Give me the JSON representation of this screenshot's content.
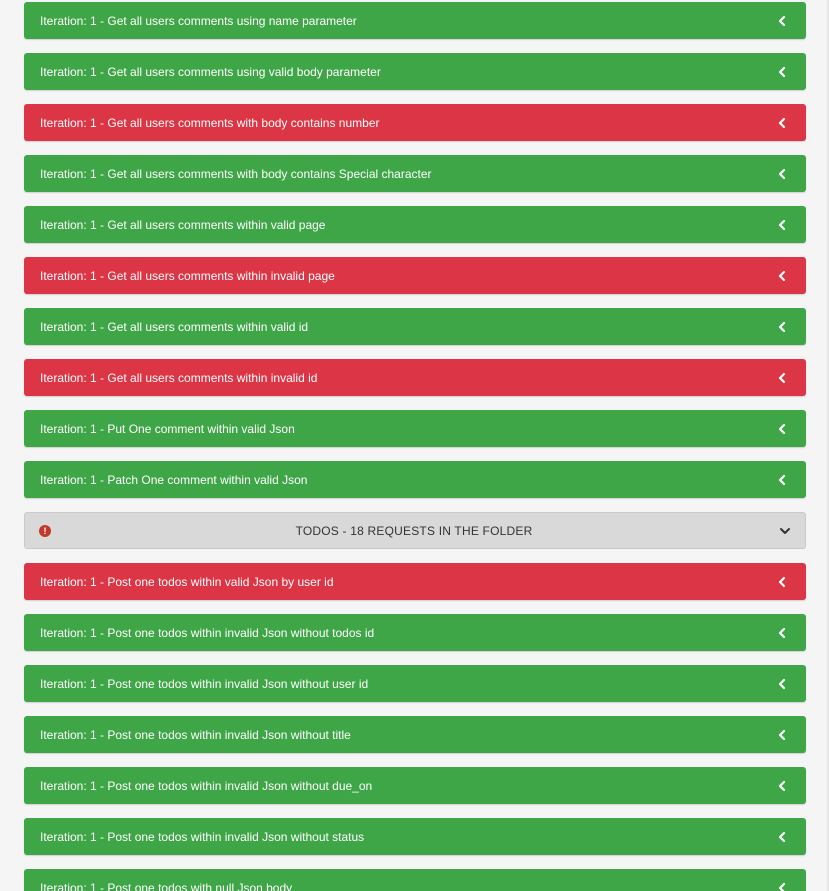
{
  "colors": {
    "pass": "#3fa648",
    "fail": "#dc3545",
    "folder_bg": "#d9d9d9",
    "info_icon": "#c0392b"
  },
  "rows_before": [
    {
      "label": "Iteration: 1 - Get all users comments using name parameter",
      "status": "pass",
      "icon": "chevron-left-icon"
    },
    {
      "label": "Iteration: 1 - Get all users comments using valid body parameter",
      "status": "pass",
      "icon": "chevron-left-icon"
    },
    {
      "label": "Iteration: 1 - Get all users comments with body contains number",
      "status": "fail",
      "icon": "chevron-left-icon"
    },
    {
      "label": "Iteration: 1 - Get all users comments with body contains Special character",
      "status": "pass",
      "icon": "chevron-left-icon"
    },
    {
      "label": "Iteration: 1 - Get all users comments within valid page",
      "status": "pass",
      "icon": "chevron-left-icon"
    },
    {
      "label": "Iteration: 1 - Get all users comments within invalid page",
      "status": "fail",
      "icon": "chevron-left-icon"
    },
    {
      "label": "Iteration: 1 - Get all users comments within valid id",
      "status": "pass",
      "icon": "chevron-left-icon"
    },
    {
      "label": "Iteration: 1 - Get all users comments within invalid id",
      "status": "fail",
      "icon": "chevron-left-icon"
    },
    {
      "label": "Iteration: 1 - Put One comment within valid Json",
      "status": "pass",
      "icon": "chevron-left-icon"
    },
    {
      "label": "Iteration: 1 - Patch One comment within valid Json",
      "status": "pass",
      "icon": "chevron-left-icon"
    }
  ],
  "folder": {
    "title": "TODOS - 18 REQUESTS IN THE FOLDER",
    "info_icon": "info-circle-icon",
    "toggle_icon": "chevron-down-icon"
  },
  "rows_after": [
    {
      "label": "Iteration: 1 - Post one todos within valid Json by user id",
      "status": "fail",
      "icon": "chevron-left-icon"
    },
    {
      "label": "Iteration: 1 - Post one todos within invalid Json without todos id",
      "status": "pass",
      "icon": "chevron-left-icon"
    },
    {
      "label": "Iteration: 1 - Post one todos within invalid Json without user id",
      "status": "pass",
      "icon": "chevron-left-icon"
    },
    {
      "label": "Iteration: 1 - Post one todos within invalid Json without title",
      "status": "pass",
      "icon": "chevron-left-icon"
    },
    {
      "label": "Iteration: 1 - Post one todos within invalid Json without due_on",
      "status": "pass",
      "icon": "chevron-left-icon"
    },
    {
      "label": "Iteration: 1 - Post one todos within invalid Json without status",
      "status": "pass",
      "icon": "chevron-left-icon"
    },
    {
      "label": "Iteration: 1 - Post one todos with null Json body",
      "status": "pass",
      "icon": "chevron-left-icon"
    }
  ]
}
